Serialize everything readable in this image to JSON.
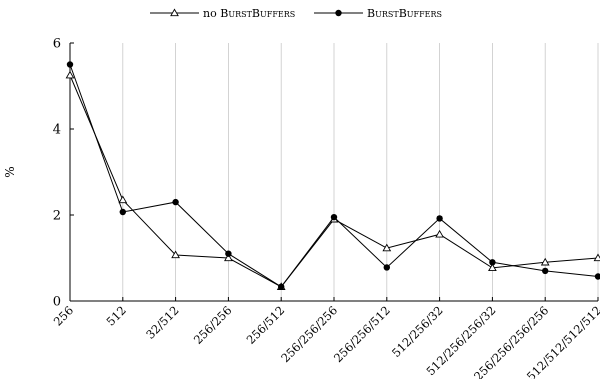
{
  "chart_data": {
    "type": "line",
    "title": "",
    "xlabel": "",
    "ylabel": "%",
    "ylim": [
      0,
      6
    ],
    "yticks": [
      0,
      2,
      4,
      6
    ],
    "grid": "vertical",
    "legend_position": "top-center",
    "categories": [
      "256",
      "512",
      "32/512",
      "256/256",
      "256/512",
      "256/256/256",
      "256/256/512",
      "512/256/32",
      "512/256/256/32",
      "256/256/256/256",
      "512/512/512/512"
    ],
    "series": [
      {
        "name": "no BurstBuffers",
        "marker": "triangle",
        "values": [
          5.25,
          2.35,
          1.07,
          1.0,
          0.33,
          1.9,
          1.23,
          1.55,
          0.77,
          0.9,
          1.0
        ]
      },
      {
        "name": "BurstBuffers",
        "marker": "circle",
        "values": [
          5.5,
          2.07,
          2.3,
          1.1,
          0.33,
          1.95,
          0.78,
          1.92,
          0.9,
          0.7,
          0.57
        ]
      }
    ]
  }
}
